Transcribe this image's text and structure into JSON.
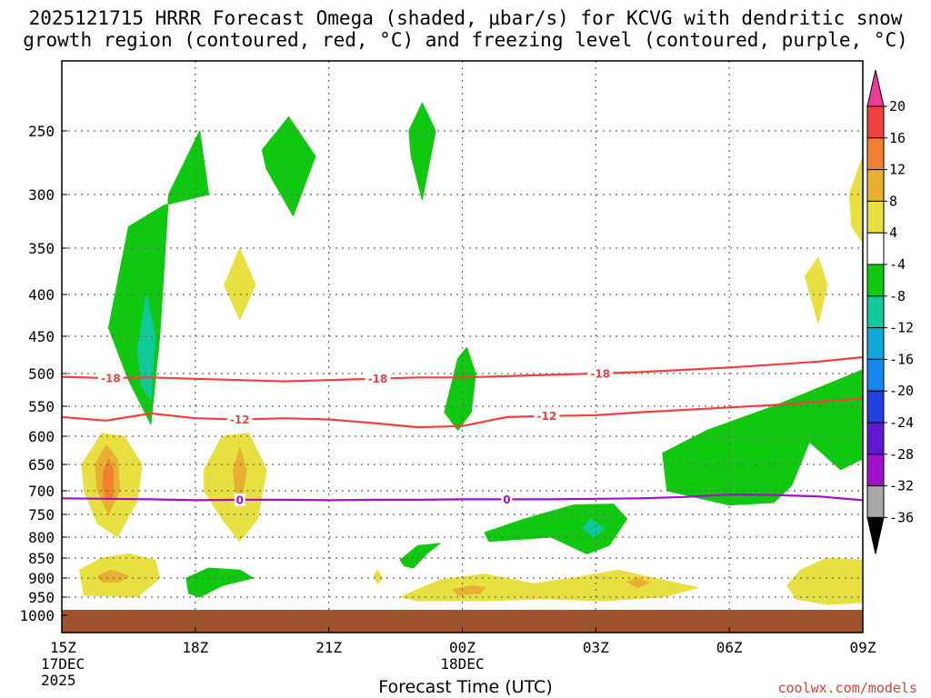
{
  "title": {
    "line1": "2025121715 HRRR Forecast Omega (shaded, μbar/s) for KCVG with dendritic snow",
    "line2": "growth region (contoured, red, °C) and freezing level (contoured, purple, °C)"
  },
  "credit": "coolwx.com/models",
  "chart_data": {
    "type": "time-height cross section",
    "title": "2025121715 HRRR Forecast Omega (shaded, μbar/s) for KCVG with dendritic snow growth region (contoured, red, °C) and freezing level (contoured, purple, °C)",
    "xlabel": "Forecast Time (UTC)",
    "ylabel": "",
    "x_range_hours": [
      0,
      18
    ],
    "x_ticks": [
      {
        "hour": 0,
        "label": "15Z",
        "sub1": "17DEC",
        "sub2": "2025"
      },
      {
        "hour": 3,
        "label": "18Z"
      },
      {
        "hour": 6,
        "label": "21Z"
      },
      {
        "hour": 9,
        "label": "00Z",
        "sub1": "18DEC"
      },
      {
        "hour": 12,
        "label": "03Z"
      },
      {
        "hour": 15,
        "label": "06Z"
      },
      {
        "hour": 18,
        "label": "09Z"
      }
    ],
    "y_ticks": [
      250,
      300,
      350,
      400,
      450,
      500,
      550,
      600,
      650,
      700,
      750,
      800,
      850,
      900,
      950,
      1000
    ],
    "y_range_hpa": [
      1050,
      200
    ],
    "colorbar": {
      "ticks": [
        20,
        16,
        12,
        8,
        4,
        -4,
        -8,
        -12,
        -16,
        -20,
        -24,
        -28,
        -32,
        -36
      ],
      "colors": [
        "#f03a9a",
        "#f04040",
        "#f08030",
        "#e8b030",
        "#e8e040",
        "#ffffff",
        "#10c810",
        "#10c898",
        "#10a8d8",
        "#1888f0",
        "#2040e0",
        "#6018d0",
        "#a010c8",
        "#a8a8a8",
        "#000000"
      ]
    },
    "contours": [
      {
        "name": "dgz-minus-18",
        "value": -18,
        "color": "#f04040",
        "points": [
          [
            0,
            505
          ],
          [
            1,
            507
          ],
          [
            2,
            506
          ],
          [
            3,
            508
          ],
          [
            4,
            510
          ],
          [
            5,
            512
          ],
          [
            6,
            510
          ],
          [
            7,
            508
          ],
          [
            8,
            506
          ],
          [
            9,
            506
          ],
          [
            10,
            504
          ],
          [
            11,
            502
          ],
          [
            12,
            500
          ],
          [
            13,
            498
          ],
          [
            14,
            495
          ],
          [
            15,
            492
          ],
          [
            16,
            488
          ],
          [
            17,
            484
          ],
          [
            18,
            478
          ]
        ],
        "label_hours": [
          1.1,
          7.1,
          12.1
        ]
      },
      {
        "name": "dgz-minus-12",
        "value": -12,
        "color": "#f04040",
        "points": [
          [
            0,
            568
          ],
          [
            1,
            574
          ],
          [
            2,
            562
          ],
          [
            3,
            570
          ],
          [
            4,
            572
          ],
          [
            5,
            570
          ],
          [
            6,
            572
          ],
          [
            7,
            578
          ],
          [
            8,
            585
          ],
          [
            9,
            583
          ],
          [
            10,
            568
          ],
          [
            11,
            566
          ],
          [
            12,
            565
          ],
          [
            13,
            560
          ],
          [
            14,
            556
          ],
          [
            15,
            552
          ],
          [
            16,
            548
          ],
          [
            17,
            543
          ],
          [
            18,
            538
          ]
        ],
        "label_hours": [
          4.0,
          10.9
        ]
      },
      {
        "name": "freezing-level",
        "value": 0,
        "color": "#a010c8",
        "points": [
          [
            0,
            716
          ],
          [
            1,
            717
          ],
          [
            2,
            718
          ],
          [
            3,
            720
          ],
          [
            4,
            719
          ],
          [
            5,
            719
          ],
          [
            6,
            720
          ],
          [
            7,
            719
          ],
          [
            8,
            719
          ],
          [
            9,
            718
          ],
          [
            10,
            718
          ],
          [
            11,
            718
          ],
          [
            12,
            717
          ],
          [
            13,
            716
          ],
          [
            14,
            713
          ],
          [
            15,
            708
          ],
          [
            16,
            709
          ],
          [
            17,
            712
          ],
          [
            18,
            720
          ]
        ],
        "label_hours": [
          4.0,
          10.0
        ]
      }
    ],
    "shaded_regions": [
      {
        "name": "green-column-1716z",
        "color": "#10c810",
        "points": [
          [
            1.05,
            440
          ],
          [
            1.5,
            330
          ],
          [
            2.3,
            310
          ],
          [
            3.3,
            300
          ],
          [
            3.1,
            250
          ],
          [
            2.4,
            300
          ],
          [
            2.2,
            450
          ],
          [
            2.0,
            580
          ],
          [
            1.5,
            510
          ]
        ]
      },
      {
        "name": "teal-column-1716z",
        "color": "#10c898",
        "points": [
          [
            1.7,
            470
          ],
          [
            1.9,
            400
          ],
          [
            2.1,
            450
          ],
          [
            2.0,
            540
          ],
          [
            1.8,
            520
          ]
        ]
      },
      {
        "name": "green-blob-20z",
        "color": "#10c810",
        "points": [
          [
            4.5,
            265
          ],
          [
            5.1,
            240
          ],
          [
            5.7,
            270
          ],
          [
            5.2,
            320
          ],
          [
            4.6,
            280
          ]
        ]
      },
      {
        "name": "green-spike-23z",
        "color": "#10c810",
        "points": [
          [
            7.8,
            250
          ],
          [
            8.1,
            230
          ],
          [
            8.4,
            250
          ],
          [
            8.1,
            305
          ],
          [
            7.85,
            270
          ]
        ]
      },
      {
        "name": "yellow-blob-19z-400",
        "color": "#e8e040",
        "points": [
          [
            3.65,
            390
          ],
          [
            4.0,
            350
          ],
          [
            4.35,
            390
          ],
          [
            4.0,
            430
          ]
        ]
      },
      {
        "name": "yellow-blob-0730z-400",
        "color": "#e8e040",
        "points": [
          [
            16.7,
            380
          ],
          [
            17.0,
            360
          ],
          [
            17.2,
            390
          ],
          [
            17.0,
            435
          ]
        ]
      },
      {
        "name": "yellow-edge-09z-300",
        "color": "#e8e040",
        "points": [
          [
            17.7,
            300
          ],
          [
            18,
            270
          ],
          [
            18,
            345
          ],
          [
            17.75,
            330
          ]
        ]
      },
      {
        "name": "green-blob-00z-500",
        "color": "#10c810",
        "points": [
          [
            8.6,
            560
          ],
          [
            8.9,
            480
          ],
          [
            9.1,
            465
          ],
          [
            9.3,
            500
          ],
          [
            9.2,
            560
          ],
          [
            8.9,
            590
          ]
        ]
      },
      {
        "name": "green-big-06z",
        "color": "#10c810",
        "points": [
          [
            13.5,
            630
          ],
          [
            14.5,
            590
          ],
          [
            16.0,
            550
          ],
          [
            18,
            495
          ],
          [
            18,
            640
          ],
          [
            17.5,
            660
          ],
          [
            16.8,
            610
          ],
          [
            16.4,
            690
          ],
          [
            16.0,
            725
          ],
          [
            15.0,
            730
          ],
          [
            13.6,
            700
          ]
        ]
      },
      {
        "name": "yellow-tall-15z",
        "color": "#e8e040",
        "points": [
          [
            0.45,
            650
          ],
          [
            0.9,
            595
          ],
          [
            1.4,
            600
          ],
          [
            1.8,
            650
          ],
          [
            1.7,
            720
          ],
          [
            1.25,
            800
          ],
          [
            0.8,
            770
          ],
          [
            0.5,
            700
          ]
        ]
      },
      {
        "name": "orange-tall-15z",
        "color": "#e8b030",
        "points": [
          [
            0.75,
            650
          ],
          [
            1.0,
            615
          ],
          [
            1.25,
            640
          ],
          [
            1.3,
            700
          ],
          [
            1.05,
            750
          ],
          [
            0.8,
            700
          ]
        ]
      },
      {
        "name": "darkorange-core-15z",
        "color": "#f08030",
        "points": [
          [
            0.95,
            660
          ],
          [
            1.05,
            640
          ],
          [
            1.15,
            660
          ],
          [
            1.15,
            710
          ],
          [
            1.0,
            720
          ],
          [
            0.92,
            690
          ]
        ]
      },
      {
        "name": "yellow-low-15z",
        "color": "#e8e040",
        "points": [
          [
            0.4,
            880
          ],
          [
            0.9,
            850
          ],
          [
            1.5,
            840
          ],
          [
            2.1,
            855
          ],
          [
            2.2,
            900
          ],
          [
            1.7,
            950
          ],
          [
            0.5,
            945
          ]
        ]
      },
      {
        "name": "orange-low-15z",
        "color": "#e8b030",
        "points": [
          [
            0.8,
            895
          ],
          [
            1.1,
            880
          ],
          [
            1.5,
            895
          ],
          [
            1.3,
            910
          ],
          [
            0.9,
            910
          ]
        ]
      },
      {
        "name": "yellow-tall-19z",
        "color": "#e8e040",
        "points": [
          [
            3.2,
            660
          ],
          [
            3.6,
            600
          ],
          [
            4.2,
            595
          ],
          [
            4.6,
            660
          ],
          [
            4.4,
            760
          ],
          [
            4.0,
            810
          ],
          [
            3.6,
            760
          ],
          [
            3.2,
            700
          ]
        ]
      },
      {
        "name": "orange-core-19z",
        "color": "#e8b030",
        "points": [
          [
            3.85,
            660
          ],
          [
            4.0,
            620
          ],
          [
            4.15,
            660
          ],
          [
            4.05,
            715
          ],
          [
            3.9,
            700
          ]
        ]
      },
      {
        "name": "green-low-18z",
        "color": "#10c810",
        "points": [
          [
            2.8,
            900
          ],
          [
            3.3,
            875
          ],
          [
            4.0,
            880
          ],
          [
            4.3,
            900
          ],
          [
            3.6,
            920
          ],
          [
            3.1,
            950
          ],
          [
            2.85,
            940
          ]
        ]
      },
      {
        "name": "yellow-dot-22z",
        "color": "#e8e040",
        "points": [
          [
            7.0,
            895
          ],
          [
            7.1,
            880
          ],
          [
            7.2,
            900
          ],
          [
            7.1,
            915
          ]
        ]
      },
      {
        "name": "green-low-23z",
        "color": "#10c810",
        "points": [
          [
            7.6,
            855
          ],
          [
            8.0,
            820
          ],
          [
            8.5,
            815
          ],
          [
            8.2,
            840
          ],
          [
            7.9,
            875
          ],
          [
            7.7,
            870
          ]
        ]
      },
      {
        "name": "green-blob-01z",
        "color": "#10c810",
        "points": [
          [
            9.5,
            790
          ],
          [
            10.4,
            760
          ],
          [
            11.5,
            730
          ],
          [
            12.4,
            728
          ],
          [
            12.7,
            760
          ],
          [
            12.3,
            820
          ],
          [
            11.8,
            840
          ],
          [
            11.0,
            800
          ],
          [
            9.6,
            810
          ]
        ]
      },
      {
        "name": "teal-dot-02z",
        "color": "#10c898",
        "points": [
          [
            11.7,
            780
          ],
          [
            11.9,
            760
          ],
          [
            12.2,
            782
          ],
          [
            11.95,
            800
          ]
        ]
      },
      {
        "name": "yellow-low-00z",
        "color": "#e8e040",
        "points": [
          [
            7.6,
            950
          ],
          [
            8.5,
            905
          ],
          [
            9.5,
            890
          ],
          [
            10.6,
            915
          ],
          [
            11.5,
            900
          ],
          [
            12.5,
            880
          ],
          [
            13.3,
            900
          ],
          [
            14.3,
            925
          ],
          [
            13.5,
            950
          ],
          [
            12.2,
            960
          ],
          [
            10.8,
            955
          ],
          [
            9.5,
            960
          ],
          [
            8.0,
            960
          ]
        ]
      },
      {
        "name": "orange-low-00z",
        "color": "#e8b030",
        "points": [
          [
            8.8,
            930
          ],
          [
            9.2,
            920
          ],
          [
            9.5,
            925
          ],
          [
            9.4,
            940
          ],
          [
            8.9,
            945
          ]
        ]
      },
      {
        "name": "orange-low-03z",
        "color": "#e8b030",
        "points": [
          [
            12.7,
            910
          ],
          [
            12.95,
            900
          ],
          [
            13.2,
            912
          ],
          [
            12.95,
            925
          ]
        ]
      },
      {
        "name": "yellow-low-07z",
        "color": "#e8e040",
        "points": [
          [
            16.3,
            920
          ],
          [
            16.6,
            880
          ],
          [
            17.2,
            850
          ],
          [
            18,
            855
          ],
          [
            18,
            965
          ],
          [
            17.2,
            970
          ],
          [
            16.5,
            955
          ]
        ]
      }
    ],
    "ground": {
      "color": "#a0522d",
      "top_hpa": 985
    }
  },
  "colors": {
    "grid": "#666666",
    "frame": "#000000",
    "credit": "#e23b3b"
  }
}
